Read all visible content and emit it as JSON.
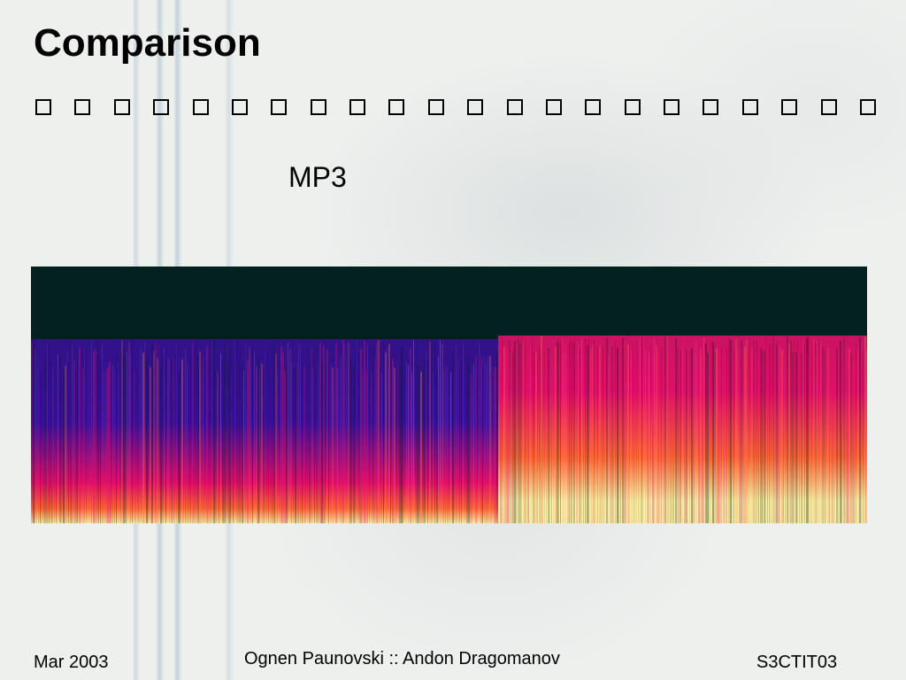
{
  "slide": {
    "title": "Comparison",
    "caption": "MP3",
    "glyph_count": 22
  },
  "footer": {
    "date": "Mar 2003",
    "authors": "Ognen Paunovski :: Andon Dragomanov",
    "code": "S3CTIT03"
  },
  "colors": {
    "spectrogram_background": "#03211f",
    "spectrogram_low": "#3a0f9a",
    "spectrogram_mid": "#e0106a",
    "spectrogram_high": "#ff6a3a",
    "spectrogram_peak": "#fff2a8"
  }
}
